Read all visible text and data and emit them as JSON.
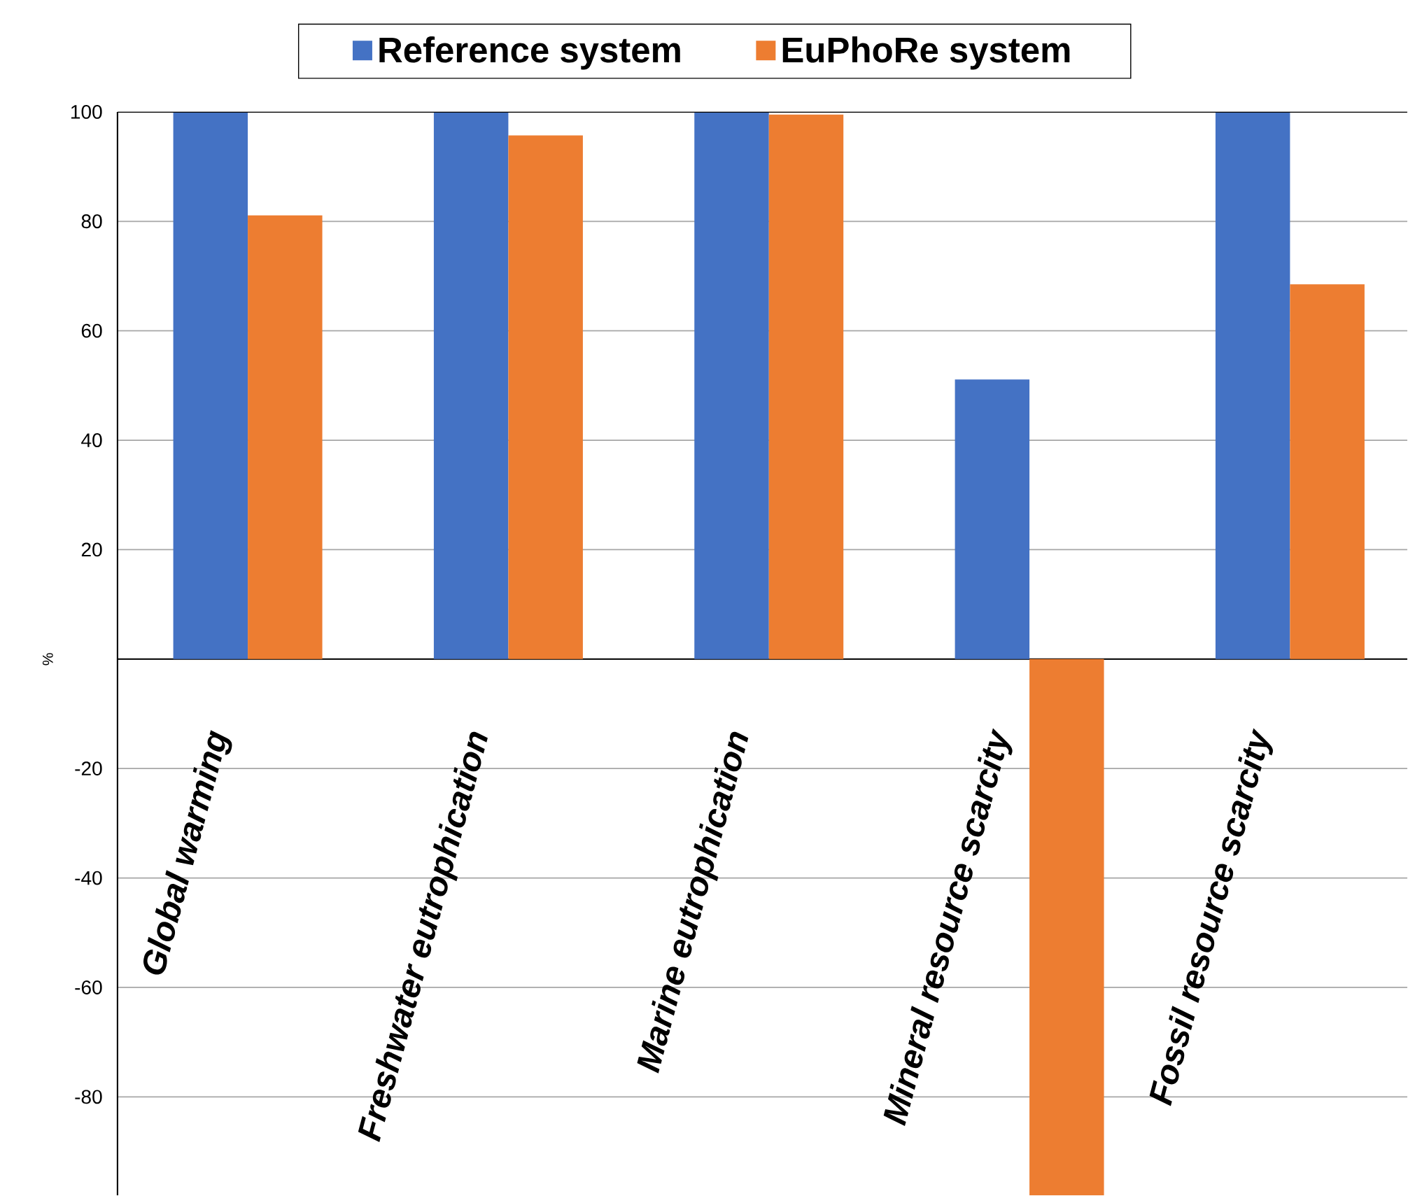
{
  "chart_data": {
    "type": "bar",
    "ylabel": "%",
    "categories": [
      "Global warming",
      "Freshwater eutrophication",
      "Marine eutrophication",
      "Mineral resource scarcity",
      "Fossil resource scarcity"
    ],
    "series": [
      {
        "name": "Reference system",
        "color": "#4472c4",
        "values": [
          100,
          100,
          100,
          51.1,
          100
        ]
      },
      {
        "name": "EuPhoRe system",
        "color": "#ed7d31",
        "values": [
          81.1,
          95.7,
          99.5,
          -98,
          68.5
        ]
      }
    ],
    "ylim": [
      -98,
      100
    ],
    "yticks": [
      -80,
      -60,
      -40,
      -20,
      {
        "value": 0,
        "label": null
      },
      20,
      40,
      60,
      80,
      100
    ],
    "grid": "y",
    "legend": "top"
  }
}
